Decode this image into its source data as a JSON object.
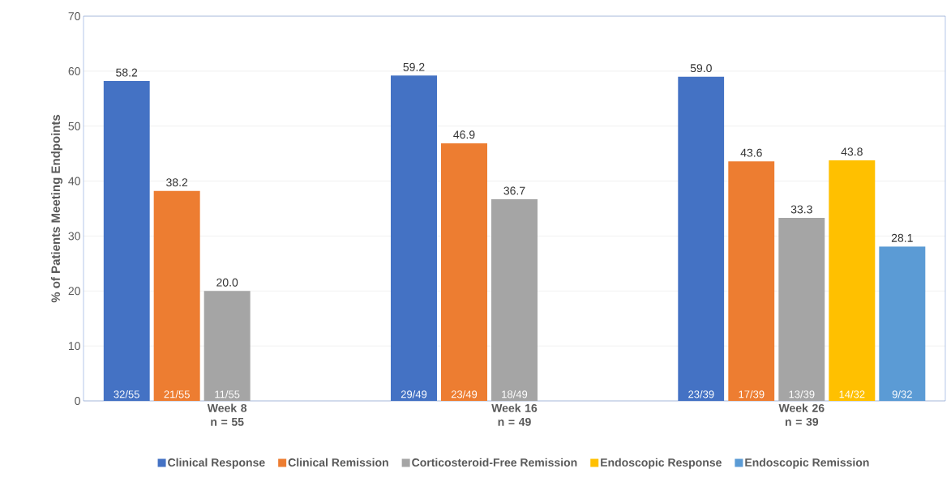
{
  "chart_data": {
    "type": "bar",
    "ylabel": "% of Patients Meeting Endpoints",
    "categories": [
      "Week 8 n = 55",
      "Week 16 n = 49",
      "Week 26 n = 39"
    ],
    "series": [
      {
        "name": "Clinical Response",
        "color": "#4472c4",
        "values": [
          58.2,
          59.2,
          59.0
        ],
        "value_labels": [
          "58.2",
          "59.2",
          "59.0"
        ]
      },
      {
        "name": "Clinical Remission",
        "color": "#ed7d31",
        "values": [
          38.2,
          46.9,
          43.6
        ],
        "value_labels": [
          "38.2",
          "46.9",
          "43.6"
        ]
      },
      {
        "name": "Corticosteroid-Free Remission",
        "color": "#a5a5a5",
        "values": [
          20.0,
          36.7,
          33.3
        ],
        "value_labels": [
          "20.0",
          "36.7",
          "33.3"
        ]
      },
      {
        "name": "Endoscopic Response",
        "color": "#ffc000",
        "values": [
          null,
          null,
          43.8
        ],
        "value_labels": [
          null,
          null,
          "43.8"
        ]
      },
      {
        "name": "Endoscopic Remission",
        "color": "#5b9bd5",
        "values": [
          null,
          null,
          28.1
        ],
        "value_labels": [
          null,
          null,
          "28.1"
        ]
      }
    ],
    "ylim": [
      0,
      70
    ],
    "yticks": [
      0,
      10,
      20,
      30,
      40,
      50,
      60,
      70
    ],
    "grid": "y",
    "legend": "bottom",
    "annotations": [
      "32/55",
      "29/49",
      "23/39",
      "21/55",
      "23/49",
      "17/39",
      "11/55",
      "18/49",
      "13/39",
      "14/32",
      "9/32"
    ]
  }
}
